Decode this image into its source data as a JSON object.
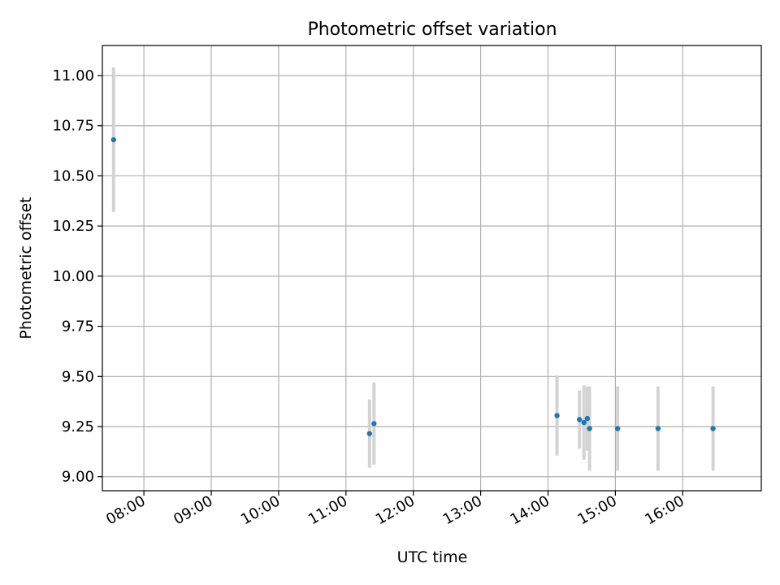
{
  "chart_data": {
    "type": "scatter",
    "title": "Photometric offset variation",
    "xlabel": "UTC time",
    "ylabel": "Photometric offset",
    "x_ticks": [
      "08:00",
      "09:00",
      "10:00",
      "11:00",
      "12:00",
      "13:00",
      "14:00",
      "15:00",
      "16:00"
    ],
    "y_ticks": [
      "9.00",
      "9.25",
      "9.50",
      "9.75",
      "10.00",
      "10.25",
      "10.50",
      "10.75",
      "11.00"
    ],
    "xlim": [
      "07:23",
      "17:10"
    ],
    "ylim": [
      8.93,
      11.15
    ],
    "grid": true,
    "point_color": "#1f77b4",
    "errorbar_color": "#d3d3d3",
    "series": [
      {
        "points": [
          {
            "x": "07:33",
            "y": 10.68,
            "err": 0.36
          },
          {
            "x": "11:21",
            "y": 9.215,
            "err": 0.17
          },
          {
            "x": "11:25",
            "y": 9.265,
            "err": 0.205
          },
          {
            "x": "14:08",
            "y": 9.305,
            "err": 0.2
          },
          {
            "x": "14:28",
            "y": 9.285,
            "err": 0.145
          },
          {
            "x": "14:32",
            "y": 9.27,
            "err": 0.185
          },
          {
            "x": "14:35",
            "y": 9.29,
            "err": 0.16
          },
          {
            "x": "14:37",
            "y": 9.24,
            "err": 0.21
          },
          {
            "x": "15:02",
            "y": 9.24,
            "err": 0.21
          },
          {
            "x": "15:38",
            "y": 9.24,
            "err": 0.21
          },
          {
            "x": "16:27",
            "y": 9.24,
            "err": 0.21
          }
        ]
      }
    ]
  }
}
